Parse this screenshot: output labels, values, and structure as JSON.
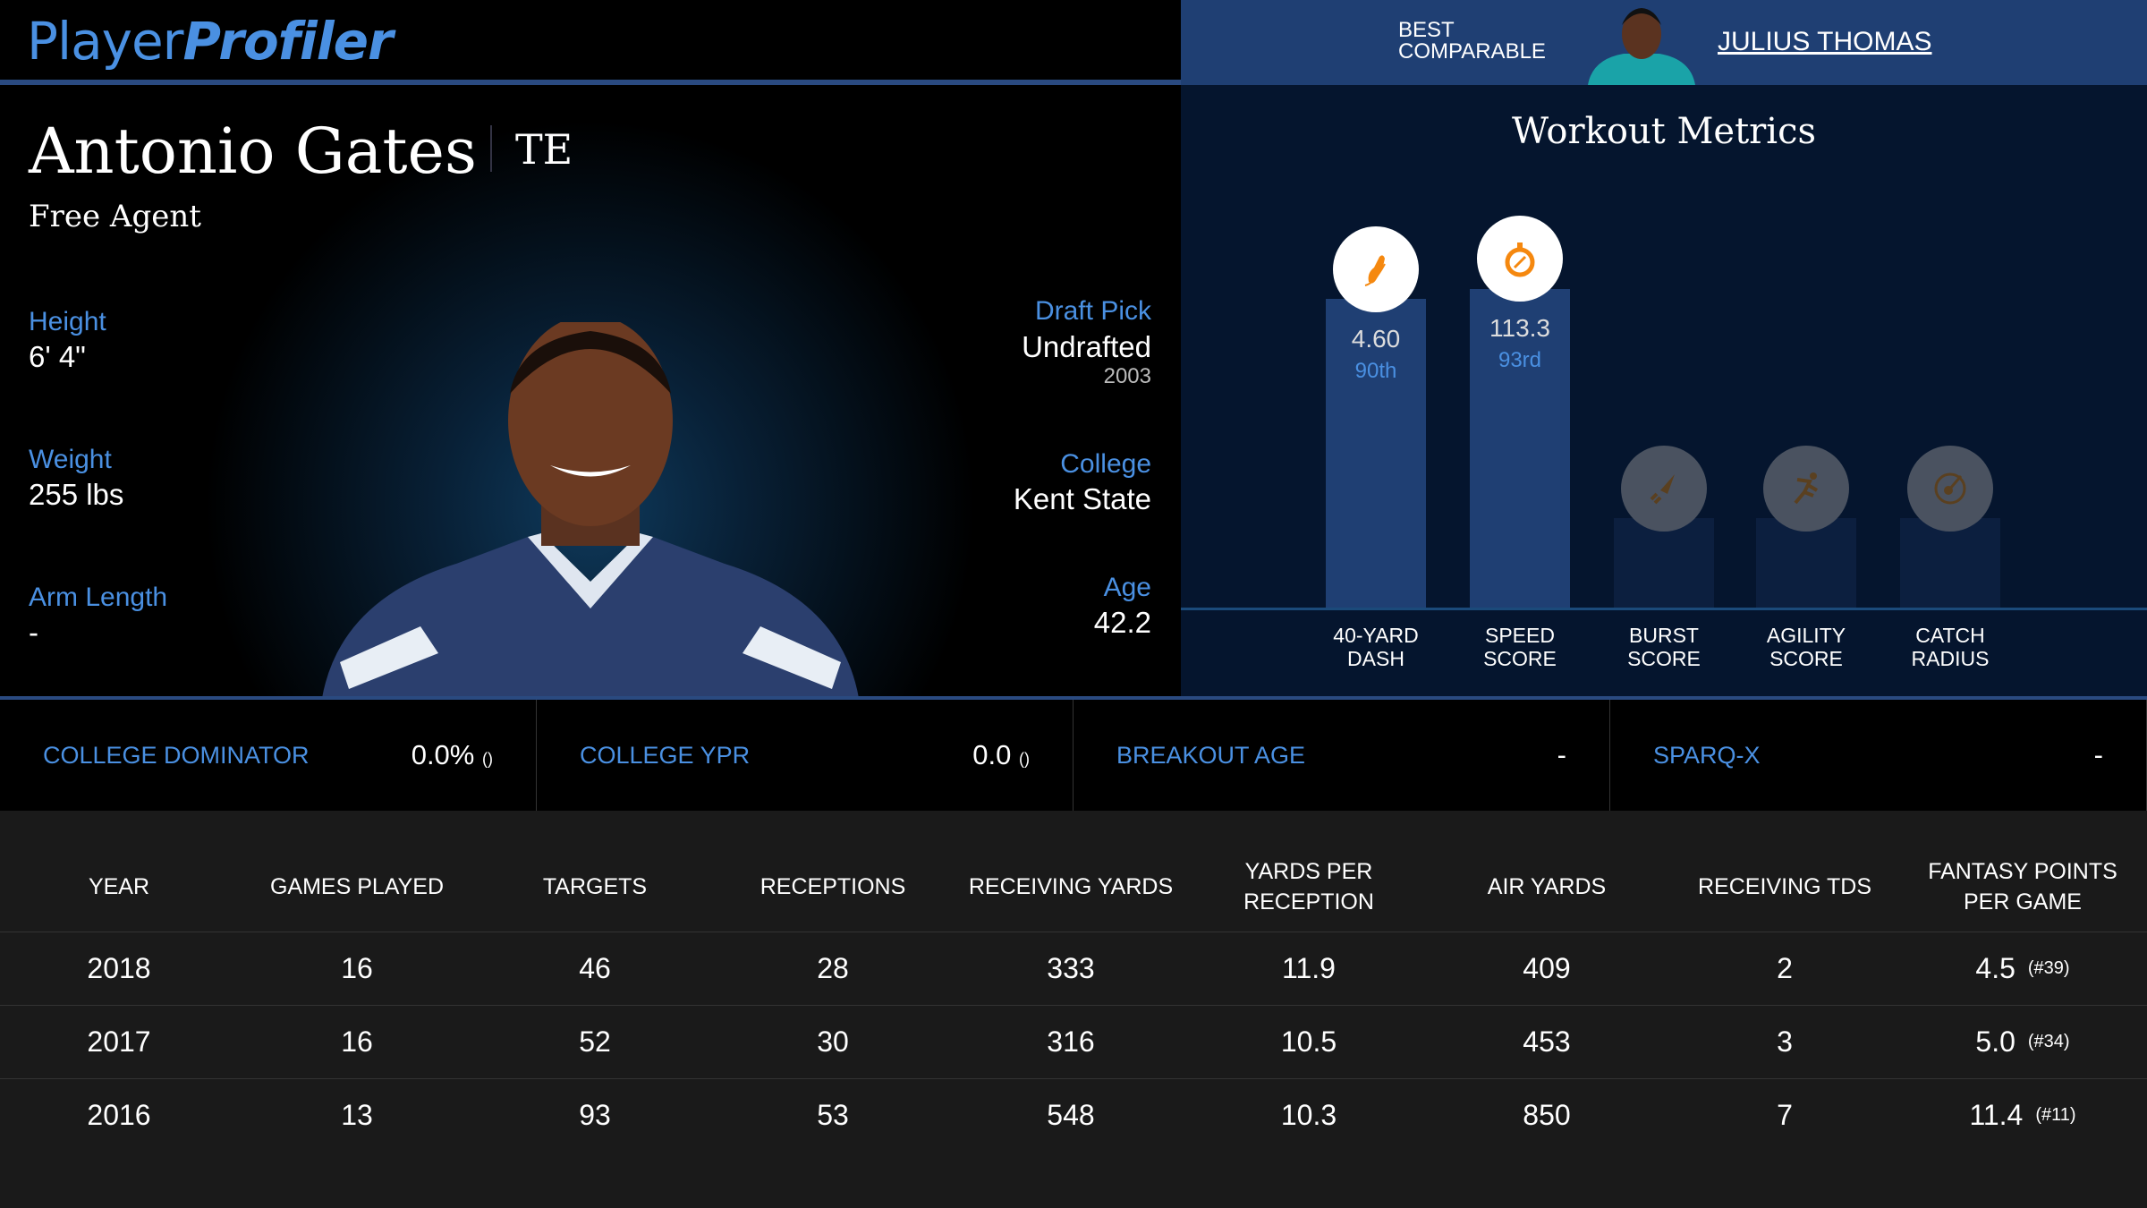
{
  "brand": {
    "part1": "Player",
    "part2": "Profiler"
  },
  "player": {
    "name": "Antonio Gates",
    "position": "TE",
    "team": "Free Agent"
  },
  "details_left": [
    {
      "label": "Height",
      "value": "6' 4\""
    },
    {
      "label": "Weight",
      "value": "255 lbs"
    },
    {
      "label": "Arm Length",
      "value": "-"
    }
  ],
  "draft": {
    "label": "Draft Pick",
    "value": "Undrafted",
    "year": "2003"
  },
  "college": {
    "label": "College",
    "value": "Kent State"
  },
  "age": {
    "label": "Age",
    "value": "42.2"
  },
  "comparable": {
    "label_line1": "BEST",
    "label_line2": "COMPARABLE",
    "name": "JULIUS THOMAS"
  },
  "workout": {
    "title": "Workout Metrics",
    "metrics": [
      {
        "line1": "40-YARD",
        "line2": "DASH",
        "value": "4.60",
        "percentile": "90th",
        "percentile_num": 90,
        "icon": "shoe-icon",
        "active": true
      },
      {
        "line1": "SPEED",
        "line2": "SCORE",
        "value": "113.3",
        "percentile": "93rd",
        "percentile_num": 93,
        "icon": "stopwatch-icon",
        "active": true
      },
      {
        "line1": "BURST",
        "line2": "SCORE",
        "icon": "rocket-icon",
        "active": false
      },
      {
        "line1": "AGILITY",
        "line2": "SCORE",
        "icon": "runner-icon",
        "active": false
      },
      {
        "line1": "CATCH",
        "line2": "RADIUS",
        "icon": "target-icon",
        "active": false
      }
    ]
  },
  "colors": {
    "accent": "#4a90e2",
    "icon_active": "#f5880f",
    "bar": "#1f3f73"
  },
  "college_stats": [
    {
      "label": "COLLEGE DOMINATOR",
      "value": "0.0%",
      "rank": "()"
    },
    {
      "label": "COLLEGE YPR",
      "value": "0.0",
      "rank": "()"
    },
    {
      "label": "BREAKOUT AGE",
      "value": "-",
      "rank": ""
    },
    {
      "label": "SPARQ-X",
      "value": "-",
      "rank": ""
    }
  ],
  "table": {
    "headers": [
      "YEAR",
      "GAMES PLAYED",
      "TARGETS",
      "RECEPTIONS",
      "RECEIVING YARDS",
      "YARDS PER RECEPTION",
      "AIR YARDS",
      "RECEIVING TDS",
      "FANTASY POINTS PER GAME"
    ],
    "rows": [
      [
        "2018",
        "16",
        "46",
        "28",
        "333",
        "11.9",
        "409",
        "2",
        "4.5",
        "(#39)"
      ],
      [
        "2017",
        "16",
        "52",
        "30",
        "316",
        "10.5",
        "453",
        "3",
        "5.0",
        "(#34)"
      ],
      [
        "2016",
        "13",
        "93",
        "53",
        "548",
        "10.3",
        "850",
        "7",
        "11.4",
        "(#11)"
      ]
    ]
  }
}
